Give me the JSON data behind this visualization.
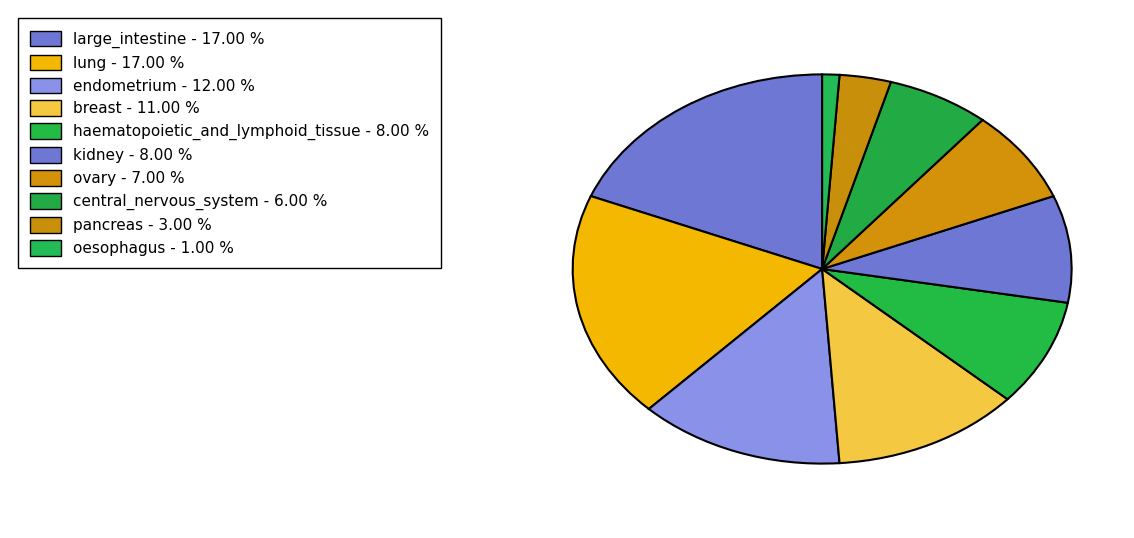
{
  "labels": [
    "large_intestine",
    "lung",
    "endometrium",
    "breast",
    "haematopoietic_and_lymphoid_tissue",
    "kidney",
    "ovary",
    "central_nervous_system",
    "pancreas",
    "oesophagus"
  ],
  "values": [
    17,
    17,
    12,
    11,
    8,
    8,
    7,
    6,
    3,
    1
  ],
  "colors": [
    "#6e78d4",
    "#f5b800",
    "#8a91e8",
    "#f5c842",
    "#22bb44",
    "#6e78d4",
    "#d4920a",
    "#22aa44",
    "#c8900a",
    "#22bb55"
  ],
  "legend_labels": [
    "large_intestine - 17.00 %",
    "lung - 17.00 %",
    "endometrium - 12.00 %",
    "breast - 11.00 %",
    "haematopoietic_and_lymphoid_tissue - 8.00 %",
    "kidney - 8.00 %",
    "ovary - 7.00 %",
    "central_nervous_system - 6.00 %",
    "pancreas - 3.00 %",
    "oesophagus - 1.00 %"
  ],
  "startangle": 90,
  "figsize": [
    11.34,
    5.38
  ],
  "dpi": 100
}
